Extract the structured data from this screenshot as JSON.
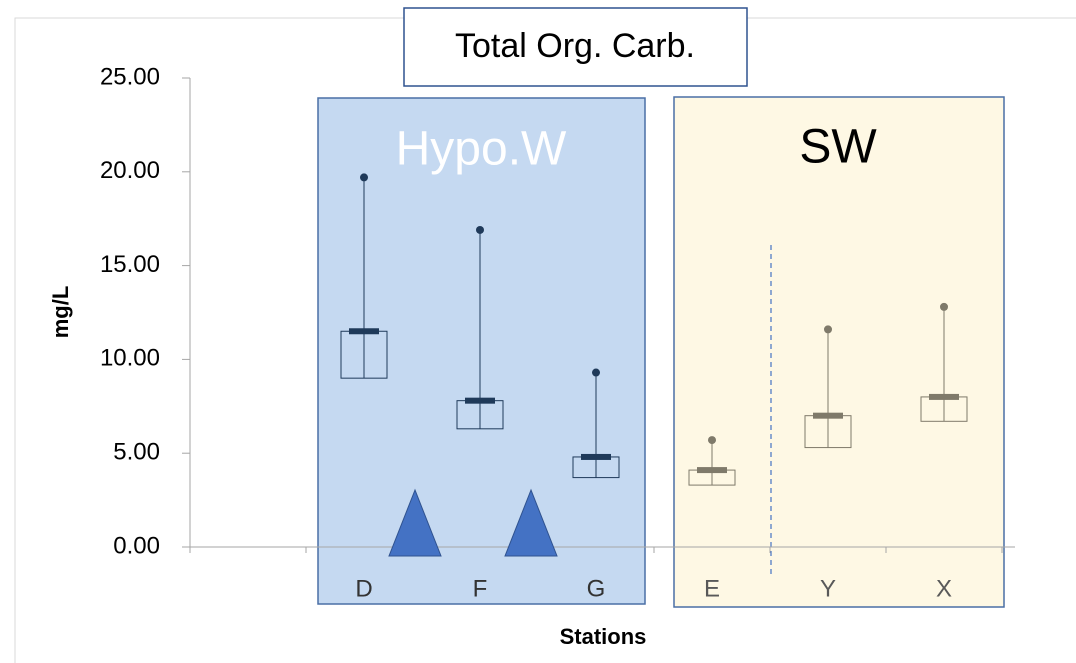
{
  "chart_data": {
    "type": "box",
    "title": "Total Org. Carb.",
    "annotations": [
      "Hypo.W",
      "SW"
    ],
    "xlabel": "Stations",
    "ylabel": "mg/L",
    "categories": [
      null,
      "D",
      "F",
      "G",
      "E",
      "Y",
      "X"
    ],
    "box_low": [
      null,
      9.0,
      6.3,
      3.7,
      3.3,
      5.3,
      6.7
    ],
    "median": [
      null,
      11.5,
      7.8,
      4.8,
      4.1,
      7.0,
      8.0
    ],
    "max": [
      null,
      19.7,
      16.9,
      9.3,
      5.7,
      11.6,
      12.8
    ],
    "colors": [
      null,
      "#1f3a5a",
      "#1f3a5a",
      "#1f3a5a",
      "#7f7a6a",
      "#7f7a6a",
      "#7f7a6a"
    ],
    "ylim": [
      0,
      25
    ],
    "yticks": [
      {
        "value": 0,
        "label": "0.00"
      },
      {
        "value": 5,
        "label": "5.00"
      },
      {
        "value": 10,
        "label": "10.00"
      },
      {
        "value": 15,
        "label": "15.00"
      },
      {
        "value": 20,
        "label": "20.00"
      },
      {
        "value": 25,
        "label": "25.00"
      }
    ]
  }
}
